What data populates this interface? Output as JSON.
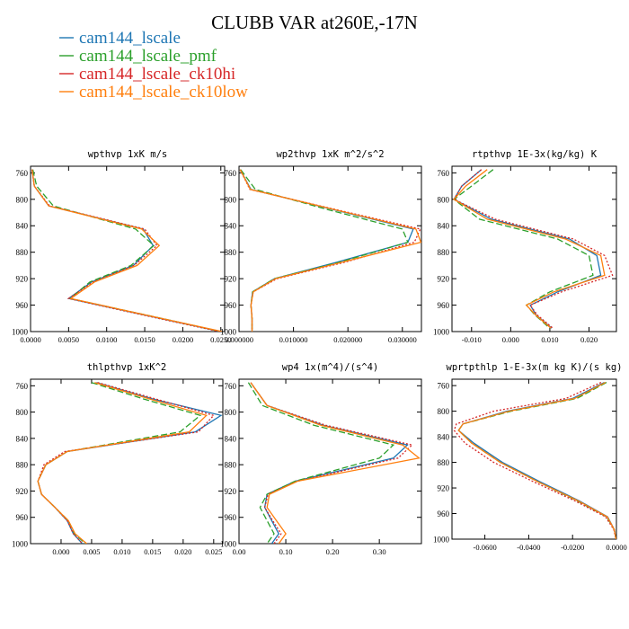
{
  "title": "CLUBB VAR at260E,-17N",
  "legend": [
    {
      "name": "cam144_lscale",
      "color": "#1f77b4",
      "dash": "solid"
    },
    {
      "name": "cam144_lscale_pmf",
      "color": "#2ca02c",
      "dash": "dashed"
    },
    {
      "name": "cam144_lscale_ck10hi",
      "color": "#d62728",
      "dash": "dotted"
    },
    {
      "name": "cam144_lscale_ck10low",
      "color": "#ff7f0e",
      "dash": "solid"
    }
  ],
  "chart_data": [
    {
      "type": "line",
      "title": "wpthvp  1xK m/s",
      "xlim": [
        0,
        0.0255
      ],
      "xticks": [
        0,
        0.005,
        0.01,
        0.015,
        0.02,
        0.025
      ],
      "xticklabels": [
        "0.0000",
        "0.0050",
        "0.0100",
        "0.0150",
        "0.0200",
        "0.0250"
      ],
      "ylim": [
        1000,
        750
      ],
      "yticks": [
        760,
        800,
        840,
        880,
        920,
        960,
        1000
      ],
      "y": [
        755,
        780,
        810,
        845,
        870,
        900,
        925,
        950,
        965,
        985,
        1000
      ],
      "series": [
        {
          "name": "cam144_lscale",
          "values": [
            0.0002,
            0.0005,
            0.0024,
            0.0148,
            0.0161,
            0.0135,
            0.008,
            0.005,
            0.011,
            0.019,
            0.025
          ]
        },
        {
          "name": "cam144_lscale_pmf",
          "values": [
            0.0003,
            0.0008,
            0.003,
            0.0138,
            0.0162,
            0.0132,
            0.0078,
            0.0052,
            0.0112,
            0.0192,
            0.025
          ]
        },
        {
          "name": "cam144_lscale_ck10hi",
          "values": [
            0.0002,
            0.0005,
            0.0025,
            0.015,
            0.0166,
            0.0136,
            0.0082,
            0.005,
            0.0108,
            0.0188,
            0.0248
          ]
        },
        {
          "name": "cam144_lscale_ck10low",
          "values": [
            0.0002,
            0.0005,
            0.0024,
            0.0146,
            0.0169,
            0.014,
            0.0084,
            0.0053,
            0.0112,
            0.0192,
            0.0252
          ]
        }
      ]
    },
    {
      "type": "line",
      "title": "wp2thvp  1xK m^2/s^2",
      "xlim": [
        0,
        0.0335
      ],
      "xticks": [
        0,
        0.01,
        0.02,
        0.03
      ],
      "xticklabels": [
        "0.000000",
        "0.010000",
        "0.020000",
        "0.030000"
      ],
      "ylim": [
        1000,
        750
      ],
      "yticks": [
        760,
        800,
        840,
        880,
        920,
        960,
        1000
      ],
      "y": [
        755,
        785,
        815,
        845,
        865,
        895,
        920,
        940,
        960,
        980,
        1000
      ],
      "series": [
        {
          "name": "cam144_lscale",
          "values": [
            0.0002,
            0.0022,
            0.017,
            0.032,
            0.031,
            0.018,
            0.0065,
            0.0025,
            0.0022,
            0.0024,
            0.0024
          ]
        },
        {
          "name": "cam144_lscale_pmf",
          "values": [
            0.0003,
            0.003,
            0.016,
            0.03,
            0.031,
            0.0185,
            0.0065,
            0.0025,
            0.0022,
            0.0024,
            0.0024
          ]
        },
        {
          "name": "cam144_lscale_ck10hi",
          "values": [
            0.0002,
            0.002,
            0.0175,
            0.0333,
            0.0322,
            0.0195,
            0.007,
            0.0026,
            0.0022,
            0.0024,
            0.0024
          ]
        },
        {
          "name": "cam144_lscale_ck10low",
          "values": [
            0.0002,
            0.0021,
            0.0172,
            0.0325,
            0.0334,
            0.019,
            0.0067,
            0.0026,
            0.0022,
            0.0024,
            0.0024
          ]
        }
      ]
    },
    {
      "type": "line",
      "title": "rtpthvp  1E-3x(kg/kg) K",
      "xlim": [
        -0.015,
        0.027
      ],
      "xticks": [
        -0.01,
        0,
        0.01,
        0.02
      ],
      "xticklabels": [
        "-0.010",
        "0.000",
        "0.010",
        "0.020"
      ],
      "ylim": [
        1000,
        750
      ],
      "yticks": [
        760,
        800,
        840,
        880,
        920,
        960,
        1000
      ],
      "y": [
        755,
        780,
        800,
        830,
        860,
        885,
        915,
        940,
        960,
        975,
        995
      ],
      "series": [
        {
          "name": "cam144_lscale",
          "values": [
            -0.0075,
            -0.0125,
            -0.0145,
            -0.005,
            0.015,
            0.022,
            0.023,
            0.012,
            0.005,
            0.0065,
            0.0105
          ]
        },
        {
          "name": "cam144_lscale_pmf",
          "values": [
            -0.0045,
            -0.01,
            -0.0145,
            -0.008,
            0.012,
            0.02,
            0.021,
            0.01,
            0.004,
            0.0062,
            0.01
          ]
        },
        {
          "name": "cam144_lscale_ck10hi",
          "values": [
            -0.0075,
            -0.0125,
            -0.0145,
            -0.004,
            0.016,
            0.024,
            0.026,
            0.013,
            0.005,
            0.0068,
            0.0108
          ]
        },
        {
          "name": "cam144_lscale_ck10low",
          "values": [
            -0.006,
            -0.0115,
            -0.0145,
            -0.006,
            0.014,
            0.023,
            0.024,
            0.011,
            0.004,
            0.0064,
            0.0103
          ]
        }
      ]
    },
    {
      "type": "line",
      "title": "thlpthvp  1xK^2",
      "xlim": [
        -0.005,
        0.0265
      ],
      "xticks": [
        0,
        0.005,
        0.01,
        0.015,
        0.02,
        0.025
      ],
      "xticklabels": [
        "0.000",
        "0.005",
        "0.010",
        "0.015",
        "0.020",
        "0.025"
      ],
      "ylim": [
        1000,
        750
      ],
      "yticks": [
        760,
        800,
        840,
        880,
        920,
        960,
        1000
      ],
      "y": [
        755,
        780,
        805,
        830,
        860,
        880,
        905,
        925,
        945,
        965,
        985,
        1000
      ],
      "series": [
        {
          "name": "cam144_lscale",
          "values": [
            0.0058,
            0.015,
            0.0262,
            0.022,
            0.001,
            -0.0025,
            -0.0038,
            -0.0032,
            -0.001,
            0.001,
            0.002,
            0.0035
          ]
        },
        {
          "name": "cam144_lscale_pmf",
          "values": [
            0.005,
            0.0135,
            0.0228,
            0.0195,
            0.001,
            -0.0025,
            -0.0038,
            -0.0032,
            -0.001,
            0.0012,
            0.0022,
            0.004
          ]
        },
        {
          "name": "cam144_lscale_ck10hi",
          "values": [
            0.006,
            0.0155,
            0.025,
            0.0225,
            0.0006,
            -0.0028,
            -0.0038,
            -0.0032,
            -0.001,
            0.001,
            0.002,
            0.0035
          ]
        },
        {
          "name": "cam144_lscale_ck10low",
          "values": [
            0.0055,
            0.0145,
            0.0238,
            0.021,
            0.001,
            -0.0025,
            -0.0038,
            -0.0032,
            -0.001,
            0.0012,
            0.0023,
            0.0042
          ]
        }
      ]
    },
    {
      "type": "line",
      "title": "wp4  1x(m^4)/(s^4)",
      "xlim": [
        0,
        0.39
      ],
      "xticks": [
        0,
        0.1,
        0.2,
        0.3
      ],
      "xticklabels": [
        "0.00",
        "0.10",
        "0.20",
        "0.30"
      ],
      "ylim": [
        1000,
        750
      ],
      "yticks": [
        760,
        800,
        840,
        880,
        920,
        960,
        1000
      ],
      "y": [
        755,
        790,
        820,
        850,
        870,
        905,
        925,
        945,
        965,
        985,
        1000
      ],
      "series": [
        {
          "name": "cam144_lscale",
          "values": [
            0.025,
            0.06,
            0.18,
            0.36,
            0.33,
            0.12,
            0.06,
            0.055,
            0.07,
            0.085,
            0.07
          ]
        },
        {
          "name": "cam144_lscale_pmf",
          "values": [
            0.02,
            0.05,
            0.16,
            0.33,
            0.3,
            0.12,
            0.06,
            0.045,
            0.06,
            0.075,
            0.06
          ]
        },
        {
          "name": "cam144_lscale_ck10hi",
          "values": [
            0.025,
            0.06,
            0.185,
            0.37,
            0.34,
            0.125,
            0.062,
            0.055,
            0.072,
            0.09,
            0.075
          ]
        },
        {
          "name": "cam144_lscale_ck10low",
          "values": [
            0.025,
            0.06,
            0.175,
            0.35,
            0.385,
            0.125,
            0.065,
            0.06,
            0.08,
            0.1,
            0.085
          ]
        }
      ]
    },
    {
      "type": "line",
      "title": "wprtpthlp  1-E-3x(m kg K)/(s kg)",
      "xlim": [
        -0.075,
        0
      ],
      "xticks": [
        -0.06,
        -0.04,
        -0.02,
        0
      ],
      "xticklabels": [
        "-0.0600",
        "-0.0400",
        "-0.0200",
        "0.0000"
      ],
      "ylim": [
        1000,
        750
      ],
      "yticks": [
        760,
        800,
        840,
        880,
        920,
        960,
        1000
      ],
      "y": [
        755,
        780,
        800,
        820,
        830,
        850,
        880,
        910,
        940,
        965,
        985,
        1000
      ],
      "series": [
        {
          "name": "cam144_lscale",
          "values": [
            -0.0055,
            -0.02,
            -0.05,
            -0.07,
            -0.072,
            -0.065,
            -0.052,
            -0.035,
            -0.017,
            -0.004,
            -0.001,
            -0.0002
          ]
        },
        {
          "name": "cam144_lscale_pmf",
          "values": [
            -0.0045,
            -0.018,
            -0.048,
            -0.07,
            -0.072,
            -0.066,
            -0.053,
            -0.036,
            -0.018,
            -0.0045,
            -0.001,
            -0.0002
          ]
        },
        {
          "name": "cam144_lscale_ck10hi",
          "values": [
            -0.007,
            -0.023,
            -0.056,
            -0.073,
            -0.074,
            -0.069,
            -0.056,
            -0.038,
            -0.019,
            -0.005,
            -0.0012,
            -0.0002
          ]
        },
        {
          "name": "cam144_lscale_ck10low",
          "values": [
            -0.005,
            -0.019,
            -0.049,
            -0.07,
            -0.072,
            -0.066,
            -0.053,
            -0.036,
            -0.0175,
            -0.0042,
            -0.001,
            -0.0002
          ]
        }
      ]
    }
  ]
}
